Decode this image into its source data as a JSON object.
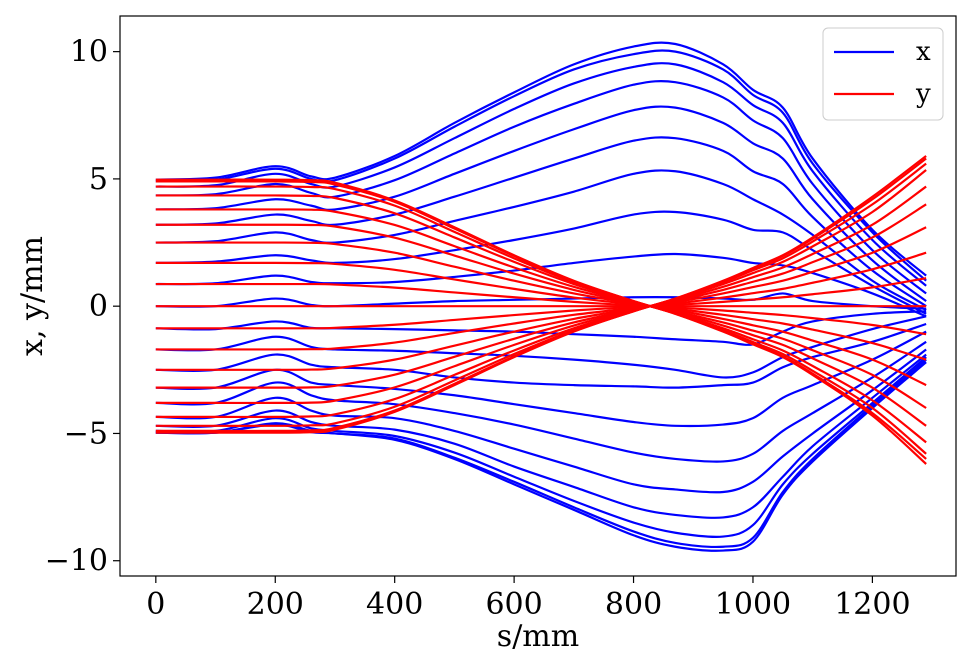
{
  "chart_data": {
    "type": "line",
    "xlabel": "s/mm",
    "ylabel": "x, y/mm",
    "xlim": [
      -60,
      1340
    ],
    "ylim": [
      -10.6,
      11.4
    ],
    "xticks": [
      0,
      200,
      400,
      600,
      800,
      1000,
      1200
    ],
    "yticks": [
      -10,
      -5,
      0,
      5,
      10
    ],
    "ytick_labels": [
      "−10",
      "−5",
      "0",
      "5",
      "10"
    ],
    "grid": false,
    "legend": {
      "placement": "top-right",
      "entries": [
        {
          "label": "x",
          "color": "#0000ff"
        },
        {
          "label": "y",
          "color": "#ff0000"
        }
      ]
    },
    "x": [
      0,
      100,
      200,
      260,
      300,
      400,
      500,
      600,
      700,
      800,
      870,
      950,
      1000,
      1050,
      1100,
      1200,
      1290
    ],
    "series": [
      {
        "group": "x",
        "color": "#0000ff",
        "values": [
          4.97,
          5.05,
          5.5,
          5.1,
          5.05,
          5.9,
          7.2,
          8.4,
          9.5,
          10.2,
          10.3,
          9.5,
          8.5,
          7.8,
          5.8,
          3.0,
          1.2
        ]
      },
      {
        "group": "x",
        "color": "#0000ff",
        "values": [
          4.9,
          4.97,
          5.4,
          5.0,
          4.95,
          5.8,
          7.05,
          8.25,
          9.3,
          9.9,
          10.0,
          9.3,
          8.3,
          7.6,
          5.6,
          2.9,
          1.0
        ]
      },
      {
        "group": "x",
        "color": "#0000ff",
        "values": [
          4.7,
          4.75,
          5.2,
          4.8,
          4.7,
          5.45,
          6.6,
          7.75,
          8.75,
          9.4,
          9.5,
          8.8,
          7.9,
          7.2,
          5.3,
          2.6,
          0.8
        ]
      },
      {
        "group": "x",
        "color": "#0000ff",
        "values": [
          4.35,
          4.4,
          4.8,
          4.45,
          4.3,
          4.95,
          6.0,
          7.05,
          7.95,
          8.7,
          8.8,
          8.2,
          7.3,
          6.6,
          4.8,
          2.2,
          0.5
        ]
      },
      {
        "group": "x",
        "color": "#0000ff",
        "values": [
          3.8,
          3.85,
          4.2,
          3.95,
          3.8,
          4.3,
          5.2,
          6.1,
          6.95,
          7.7,
          7.8,
          7.2,
          6.4,
          5.8,
          4.2,
          1.8,
          0.2
        ]
      },
      {
        "group": "x",
        "color": "#0000ff",
        "values": [
          3.2,
          3.25,
          3.6,
          3.35,
          3.2,
          3.6,
          4.3,
          5.05,
          5.8,
          6.5,
          6.6,
          6.1,
          5.3,
          4.8,
          3.5,
          1.4,
          0.0
        ]
      },
      {
        "group": "x",
        "color": "#0000ff",
        "values": [
          2.5,
          2.55,
          2.9,
          2.6,
          2.5,
          2.8,
          3.35,
          3.9,
          4.5,
          5.2,
          5.3,
          4.8,
          4.2,
          3.6,
          2.8,
          1.0,
          -0.15
        ]
      },
      {
        "group": "x",
        "color": "#0000ff",
        "values": [
          1.7,
          1.75,
          2.0,
          1.8,
          1.7,
          1.85,
          2.2,
          2.6,
          3.05,
          3.6,
          3.7,
          3.4,
          3.0,
          2.9,
          2.2,
          0.8,
          -0.3
        ]
      },
      {
        "group": "x",
        "color": "#0000ff",
        "values": [
          0.87,
          0.9,
          1.2,
          0.95,
          0.9,
          0.95,
          1.15,
          1.4,
          1.7,
          1.95,
          2.05,
          1.9,
          1.7,
          1.6,
          1.3,
          0.5,
          -0.4
        ]
      },
      {
        "group": "x",
        "color": "#0000ff",
        "values": [
          0.0,
          0.0,
          0.3,
          0.05,
          0.0,
          0.1,
          0.2,
          0.25,
          0.3,
          0.35,
          0.35,
          0.3,
          0.25,
          0.5,
          0.2,
          0.0,
          -0.1
        ]
      },
      {
        "group": "x",
        "color": "#0000ff",
        "values": [
          -0.87,
          -0.9,
          -0.6,
          -0.85,
          -0.87,
          -0.9,
          -0.95,
          -1.0,
          -1.1,
          -1.2,
          -1.3,
          -1.4,
          -1.5,
          -1.0,
          -0.6,
          -0.3,
          -0.2
        ]
      },
      {
        "group": "x",
        "color": "#0000ff",
        "values": [
          -1.7,
          -1.7,
          -1.2,
          -1.6,
          -1.7,
          -1.75,
          -1.85,
          -1.95,
          -2.1,
          -2.3,
          -2.5,
          -2.8,
          -2.6,
          -2.0,
          -1.6,
          -0.9,
          -0.4
        ]
      },
      {
        "group": "x",
        "color": "#0000ff",
        "values": [
          -2.5,
          -2.5,
          -1.9,
          -2.3,
          -2.4,
          -2.5,
          -2.8,
          -3.0,
          -3.1,
          -3.15,
          -3.2,
          -3.1,
          -3.0,
          -2.4,
          -2.0,
          -1.4,
          -0.7
        ]
      },
      {
        "group": "x",
        "color": "#0000ff",
        "values": [
          -3.2,
          -3.2,
          -2.5,
          -3.0,
          -3.1,
          -3.25,
          -3.5,
          -3.85,
          -4.2,
          -4.55,
          -4.7,
          -4.65,
          -4.4,
          -3.6,
          -3.1,
          -2.1,
          -1.0
        ]
      },
      {
        "group": "x",
        "color": "#0000ff",
        "values": [
          -3.8,
          -3.8,
          -3.0,
          -3.5,
          -3.7,
          -3.85,
          -4.2,
          -4.65,
          -5.2,
          -5.75,
          -6.0,
          -6.1,
          -5.8,
          -4.9,
          -4.2,
          -2.8,
          -1.4
        ]
      },
      {
        "group": "x",
        "color": "#0000ff",
        "values": [
          -4.35,
          -4.35,
          -3.6,
          -4.1,
          -4.3,
          -4.4,
          -4.9,
          -5.6,
          -6.3,
          -7.0,
          -7.2,
          -7.3,
          -6.9,
          -5.9,
          -5.0,
          -3.3,
          -1.7
        ]
      },
      {
        "group": "x",
        "color": "#0000ff",
        "values": [
          -4.7,
          -4.7,
          -4.1,
          -4.55,
          -4.7,
          -4.85,
          -5.4,
          -6.3,
          -7.1,
          -7.9,
          -8.2,
          -8.3,
          -7.9,
          -6.7,
          -5.5,
          -3.6,
          -1.9
        ]
      },
      {
        "group": "x",
        "color": "#0000ff",
        "values": [
          -4.9,
          -4.9,
          -4.4,
          -4.8,
          -4.9,
          -5.1,
          -5.75,
          -6.7,
          -7.65,
          -8.5,
          -8.9,
          -9.05,
          -8.6,
          -7.0,
          -5.8,
          -3.8,
          -2.0
        ]
      },
      {
        "group": "x",
        "color": "#0000ff",
        "values": [
          -4.97,
          -4.97,
          -4.6,
          -4.9,
          -5.0,
          -5.2,
          -5.95,
          -6.9,
          -7.9,
          -8.85,
          -9.3,
          -9.45,
          -9.1,
          -7.3,
          -6.0,
          -3.9,
          -2.1
        ]
      },
      {
        "group": "x",
        "color": "#0000ff",
        "values": [
          -4.97,
          -4.97,
          -4.65,
          -4.95,
          -5.0,
          -5.25,
          -6.0,
          -7.0,
          -8.0,
          -9.0,
          -9.45,
          -9.6,
          -9.25,
          -7.4,
          -6.1,
          -4.0,
          -2.2
        ]
      },
      {
        "group": "y",
        "color": "#ff0000",
        "values": [
          4.97,
          4.97,
          4.97,
          4.95,
          4.85,
          4.15,
          3.1,
          2.0,
          1.0,
          0.2,
          -0.3,
          -1.0,
          -1.5,
          -2.0,
          -2.7,
          -4.3,
          -6.2
        ]
      },
      {
        "group": "y",
        "color": "#ff0000",
        "values": [
          4.9,
          4.9,
          4.9,
          4.88,
          4.78,
          4.1,
          3.05,
          1.97,
          0.98,
          0.2,
          -0.3,
          -0.98,
          -1.47,
          -1.97,
          -2.65,
          -4.2,
          -6.0
        ]
      },
      {
        "group": "y",
        "color": "#ff0000",
        "values": [
          4.7,
          4.7,
          4.7,
          4.68,
          4.6,
          3.95,
          2.92,
          1.88,
          0.94,
          0.19,
          -0.29,
          -0.94,
          -1.41,
          -1.88,
          -2.54,
          -4.0,
          -5.8
        ]
      },
      {
        "group": "y",
        "color": "#ff0000",
        "values": [
          4.35,
          4.35,
          4.35,
          4.33,
          4.25,
          3.65,
          2.7,
          1.74,
          0.87,
          0.17,
          -0.27,
          -0.87,
          -1.3,
          -1.74,
          -2.35,
          -3.7,
          -5.35
        ]
      },
      {
        "group": "y",
        "color": "#ff0000",
        "values": [
          3.8,
          3.8,
          3.8,
          3.79,
          3.71,
          3.19,
          2.36,
          1.52,
          0.76,
          0.15,
          -0.23,
          -0.76,
          -1.14,
          -1.52,
          -2.05,
          -3.2,
          -4.7
        ]
      },
      {
        "group": "y",
        "color": "#ff0000",
        "values": [
          3.2,
          3.2,
          3.2,
          3.19,
          3.13,
          2.69,
          1.99,
          1.28,
          0.64,
          0.13,
          -0.2,
          -0.64,
          -0.96,
          -1.28,
          -1.73,
          -2.7,
          -4.0
        ]
      },
      {
        "group": "y",
        "color": "#ff0000",
        "values": [
          2.5,
          2.5,
          2.5,
          2.49,
          2.44,
          2.1,
          1.55,
          1.0,
          0.5,
          0.1,
          -0.15,
          -0.5,
          -0.75,
          -1.0,
          -1.35,
          -2.1,
          -3.1
        ]
      },
      {
        "group": "y",
        "color": "#ff0000",
        "values": [
          1.7,
          1.7,
          1.7,
          1.69,
          1.66,
          1.43,
          1.05,
          0.68,
          0.34,
          0.07,
          -0.1,
          -0.34,
          -0.51,
          -0.68,
          -0.92,
          -1.45,
          -2.1
        ]
      },
      {
        "group": "y",
        "color": "#ff0000",
        "values": [
          0.87,
          0.87,
          0.87,
          0.87,
          0.85,
          0.73,
          0.54,
          0.35,
          0.17,
          0.03,
          -0.05,
          -0.17,
          -0.26,
          -0.35,
          -0.47,
          -0.74,
          -1.1
        ]
      },
      {
        "group": "y",
        "color": "#ff0000",
        "values": [
          0.0,
          0.0,
          0.0,
          0.0,
          0.0,
          0.0,
          0.0,
          0.0,
          0.0,
          0.0,
          0.0,
          0.0,
          0.0,
          0.0,
          0.0,
          0.0,
          0.0
        ]
      },
      {
        "group": "y",
        "color": "#ff0000",
        "values": [
          -0.87,
          -0.87,
          -0.87,
          -0.87,
          -0.85,
          -0.73,
          -0.54,
          -0.35,
          -0.17,
          -0.03,
          0.05,
          0.17,
          0.26,
          0.35,
          0.47,
          0.74,
          1.1
        ]
      },
      {
        "group": "y",
        "color": "#ff0000",
        "values": [
          -1.7,
          -1.7,
          -1.7,
          -1.69,
          -1.66,
          -1.43,
          -1.05,
          -0.68,
          -0.34,
          -0.07,
          0.1,
          0.34,
          0.51,
          0.68,
          0.92,
          1.45,
          2.1
        ]
      },
      {
        "group": "y",
        "color": "#ff0000",
        "values": [
          -2.5,
          -2.5,
          -2.5,
          -2.49,
          -2.44,
          -2.1,
          -1.55,
          -1.0,
          -0.5,
          -0.1,
          0.15,
          0.5,
          0.75,
          1.0,
          1.35,
          2.1,
          3.1
        ]
      },
      {
        "group": "y",
        "color": "#ff0000",
        "values": [
          -3.2,
          -3.2,
          -3.2,
          -3.19,
          -3.13,
          -2.69,
          -1.99,
          -1.28,
          -0.64,
          -0.13,
          0.2,
          0.64,
          0.96,
          1.28,
          1.73,
          2.7,
          4.0
        ]
      },
      {
        "group": "y",
        "color": "#ff0000",
        "values": [
          -3.8,
          -3.8,
          -3.8,
          -3.79,
          -3.71,
          -3.19,
          -2.36,
          -1.52,
          -0.76,
          -0.15,
          0.23,
          0.76,
          1.14,
          1.52,
          2.05,
          3.2,
          4.7
        ]
      },
      {
        "group": "y",
        "color": "#ff0000",
        "values": [
          -4.35,
          -4.35,
          -4.35,
          -4.33,
          -4.25,
          -3.65,
          -2.7,
          -1.74,
          -0.87,
          -0.17,
          0.27,
          0.87,
          1.3,
          1.74,
          2.35,
          3.7,
          5.35
        ]
      },
      {
        "group": "y",
        "color": "#ff0000",
        "values": [
          -4.7,
          -4.7,
          -4.7,
          -4.68,
          -4.6,
          -3.95,
          -2.92,
          -1.88,
          -0.94,
          -0.19,
          0.29,
          0.94,
          1.41,
          1.88,
          2.54,
          4.0,
          5.6
        ]
      },
      {
        "group": "y",
        "color": "#ff0000",
        "values": [
          -4.9,
          -4.9,
          -4.9,
          -4.88,
          -4.78,
          -4.1,
          -3.05,
          -1.97,
          -0.98,
          -0.2,
          0.3,
          0.98,
          1.47,
          1.97,
          2.65,
          4.2,
          5.8
        ]
      },
      {
        "group": "y",
        "color": "#ff0000",
        "values": [
          -4.97,
          -4.97,
          -4.97,
          -4.95,
          -4.85,
          -4.15,
          -3.1,
          -2.0,
          -1.0,
          -0.2,
          0.3,
          1.0,
          1.5,
          2.0,
          2.7,
          4.3,
          5.9
        ]
      }
    ]
  }
}
